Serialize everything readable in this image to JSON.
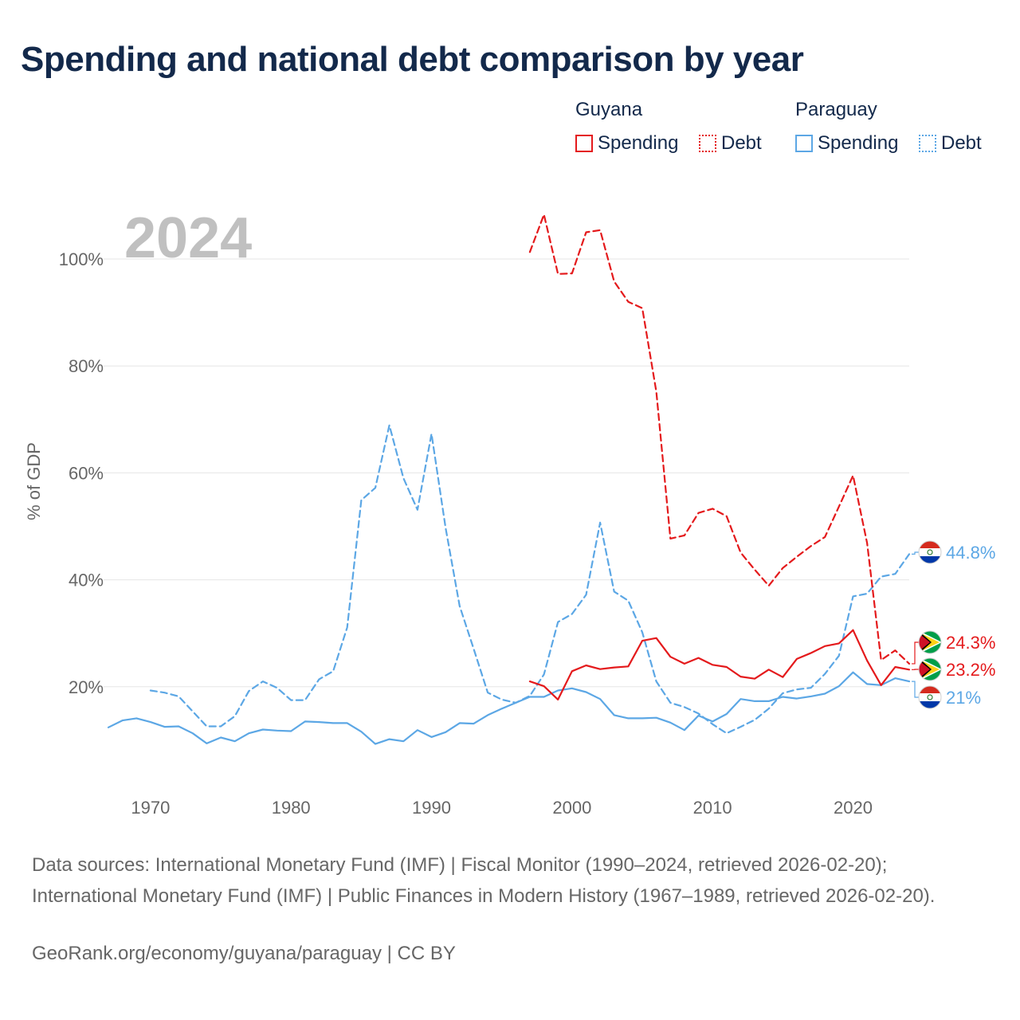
{
  "title": "Spending and national debt comparison by year",
  "legend": {
    "groups": [
      {
        "country": "Guyana",
        "color": "#e41a1c",
        "items": [
          {
            "label": "Spending",
            "style": "solid"
          },
          {
            "label": "Debt",
            "style": "dotted"
          }
        ]
      },
      {
        "country": "Paraguay",
        "color": "#5ca7e5",
        "items": [
          {
            "label": "Spending",
            "style": "solid"
          },
          {
            "label": "Debt",
            "style": "dotted"
          }
        ]
      }
    ]
  },
  "chart_data": {
    "type": "line",
    "year_label": "2024",
    "ylabel": "% of GDP",
    "xlim": [
      1967,
      2024
    ],
    "ylim": [
      0,
      115
    ],
    "y_ticks": [
      20,
      40,
      60,
      80,
      100
    ],
    "y_tick_labels": [
      "20%",
      "40%",
      "60%",
      "80%",
      "100%"
    ],
    "x_ticks": [
      1970,
      1980,
      1990,
      2000,
      2010,
      2020
    ],
    "x_tick_labels": [
      "1970",
      "1980",
      "1990",
      "2000",
      "2010",
      "2020"
    ],
    "grid": true,
    "series": [
      {
        "name": "Paraguay Debt",
        "country": "Paraguay",
        "metric": "Debt",
        "color": "#5ca7e5",
        "dash": "dashed",
        "x": [
          1970,
          1971,
          1972,
          1973,
          1974,
          1975,
          1976,
          1977,
          1978,
          1979,
          1980,
          1981,
          1982,
          1983,
          1984,
          1985,
          1986,
          1987,
          1988,
          1989,
          1990,
          1991,
          1992,
          1993,
          1994,
          1995,
          1996,
          1997,
          1998,
          1999,
          2000,
          2001,
          2002,
          2003,
          2004,
          2005,
          2006,
          2007,
          2008,
          2009,
          2010,
          2011,
          2012,
          2013,
          2014,
          2015,
          2016,
          2017,
          2018,
          2019,
          2020,
          2021,
          2022,
          2023,
          2024
        ],
        "y": [
          19.3,
          18.9,
          18.2,
          15.4,
          12.6,
          12.6,
          14.5,
          19.2,
          21.0,
          19.8,
          17.5,
          17.5,
          21.4,
          22.9,
          31.1,
          54.9,
          57.2,
          68.9,
          59.0,
          53.1,
          67.3,
          49.7,
          35.1,
          27.1,
          18.9,
          17.6,
          17.0,
          18.3,
          22.3,
          32.1,
          33.6,
          37.2,
          50.7,
          37.8,
          36.1,
          30.2,
          21.0,
          17.0,
          16.2,
          15.0,
          13.0,
          11.3,
          12.5,
          13.8,
          15.9,
          18.8,
          19.5,
          19.8,
          22.4,
          25.8,
          36.9,
          37.4,
          40.6,
          41.1,
          44.8
        ]
      },
      {
        "name": "Paraguay Spending",
        "country": "Paraguay",
        "metric": "Spending",
        "color": "#5ca7e5",
        "dash": "solid",
        "x": [
          1967,
          1968,
          1969,
          1970,
          1971,
          1972,
          1973,
          1974,
          1975,
          1976,
          1977,
          1978,
          1979,
          1980,
          1981,
          1982,
          1983,
          1984,
          1985,
          1986,
          1987,
          1988,
          1989,
          1990,
          1991,
          1992,
          1993,
          1994,
          1995,
          1996,
          1997,
          1998,
          1999,
          2000,
          2001,
          2002,
          2003,
          2004,
          2005,
          2006,
          2007,
          2008,
          2009,
          2010,
          2011,
          2012,
          2013,
          2014,
          2015,
          2016,
          2017,
          2018,
          2019,
          2020,
          2021,
          2022,
          2023,
          2024
        ],
        "y": [
          12.4,
          13.7,
          14.1,
          13.4,
          12.5,
          12.6,
          11.3,
          9.4,
          10.5,
          9.8,
          11.3,
          12.0,
          11.8,
          11.7,
          13.5,
          13.4,
          13.2,
          13.2,
          11.6,
          9.3,
          10.2,
          9.8,
          11.9,
          10.6,
          11.5,
          13.2,
          13.1,
          14.7,
          15.9,
          17.0,
          18.1,
          18.1,
          19.3,
          19.7,
          19.0,
          17.7,
          14.7,
          14.1,
          14.1,
          14.2,
          13.3,
          11.9,
          14.6,
          13.5,
          14.9,
          17.7,
          17.3,
          17.3,
          18.1,
          17.8,
          18.2,
          18.7,
          20.1,
          22.7,
          20.5,
          20.3,
          21.6,
          21.0
        ]
      },
      {
        "name": "Guyana Debt",
        "country": "Guyana",
        "metric": "Debt",
        "color": "#e41a1c",
        "dash": "dashed",
        "x": [
          1997,
          1998,
          1999,
          2000,
          2001,
          2002,
          2003,
          2004,
          2005,
          2006,
          2007,
          2008,
          2009,
          2010,
          2011,
          2012,
          2013,
          2014,
          2015,
          2016,
          2017,
          2018,
          2019,
          2020,
          2021,
          2022,
          2023,
          2024
        ],
        "y": [
          101.3,
          108.3,
          97.2,
          97.3,
          105.0,
          105.4,
          95.8,
          92.0,
          90.8,
          75.2,
          47.7,
          48.3,
          52.5,
          53.3,
          51.9,
          45.1,
          41.9,
          38.9,
          42.2,
          44.3,
          46.3,
          48.0,
          53.7,
          59.5,
          46.9,
          25.0,
          26.8,
          24.3
        ]
      },
      {
        "name": "Guyana Spending",
        "country": "Guyana",
        "metric": "Spending",
        "color": "#e41a1c",
        "dash": "solid",
        "x": [
          1997,
          1998,
          1999,
          2000,
          2001,
          2002,
          2003,
          2004,
          2005,
          2006,
          2007,
          2008,
          2009,
          2010,
          2011,
          2012,
          2013,
          2014,
          2015,
          2016,
          2017,
          2018,
          2019,
          2020,
          2021,
          2022,
          2023,
          2024
        ],
        "y": [
          21.0,
          20.1,
          17.6,
          22.9,
          24.0,
          23.3,
          23.6,
          23.8,
          28.6,
          29.1,
          25.6,
          24.3,
          25.4,
          24.1,
          23.7,
          21.9,
          21.5,
          23.2,
          21.8,
          25.2,
          26.3,
          27.6,
          28.1,
          30.6,
          24.9,
          20.3,
          23.7,
          23.2
        ]
      }
    ],
    "end_labels": [
      {
        "series": "Paraguay Debt",
        "text": "44.8%",
        "color": "#5ca7e5",
        "flag": "paraguay-flag"
      },
      {
        "series": "Guyana Debt",
        "text": "24.3%",
        "color": "#e41a1c",
        "flag": "guyana-flag"
      },
      {
        "series": "Guyana Spending",
        "text": "23.2%",
        "color": "#e41a1c",
        "flag": "guyana-flag"
      },
      {
        "series": "Paraguay Spending",
        "text": "21%",
        "color": "#5ca7e5",
        "flag": "paraguay-flag"
      }
    ]
  },
  "footer": {
    "sources": "Data sources: International Monetary Fund (IMF) | Fiscal Monitor (1990–2024, retrieved 2026-02-20); International Monetary Fund (IMF) | Public Finances in Modern History (1967–1989, retrieved 2026-02-20).",
    "credit": "GeoRank.org/economy/guyana/paraguay | CC BY"
  }
}
